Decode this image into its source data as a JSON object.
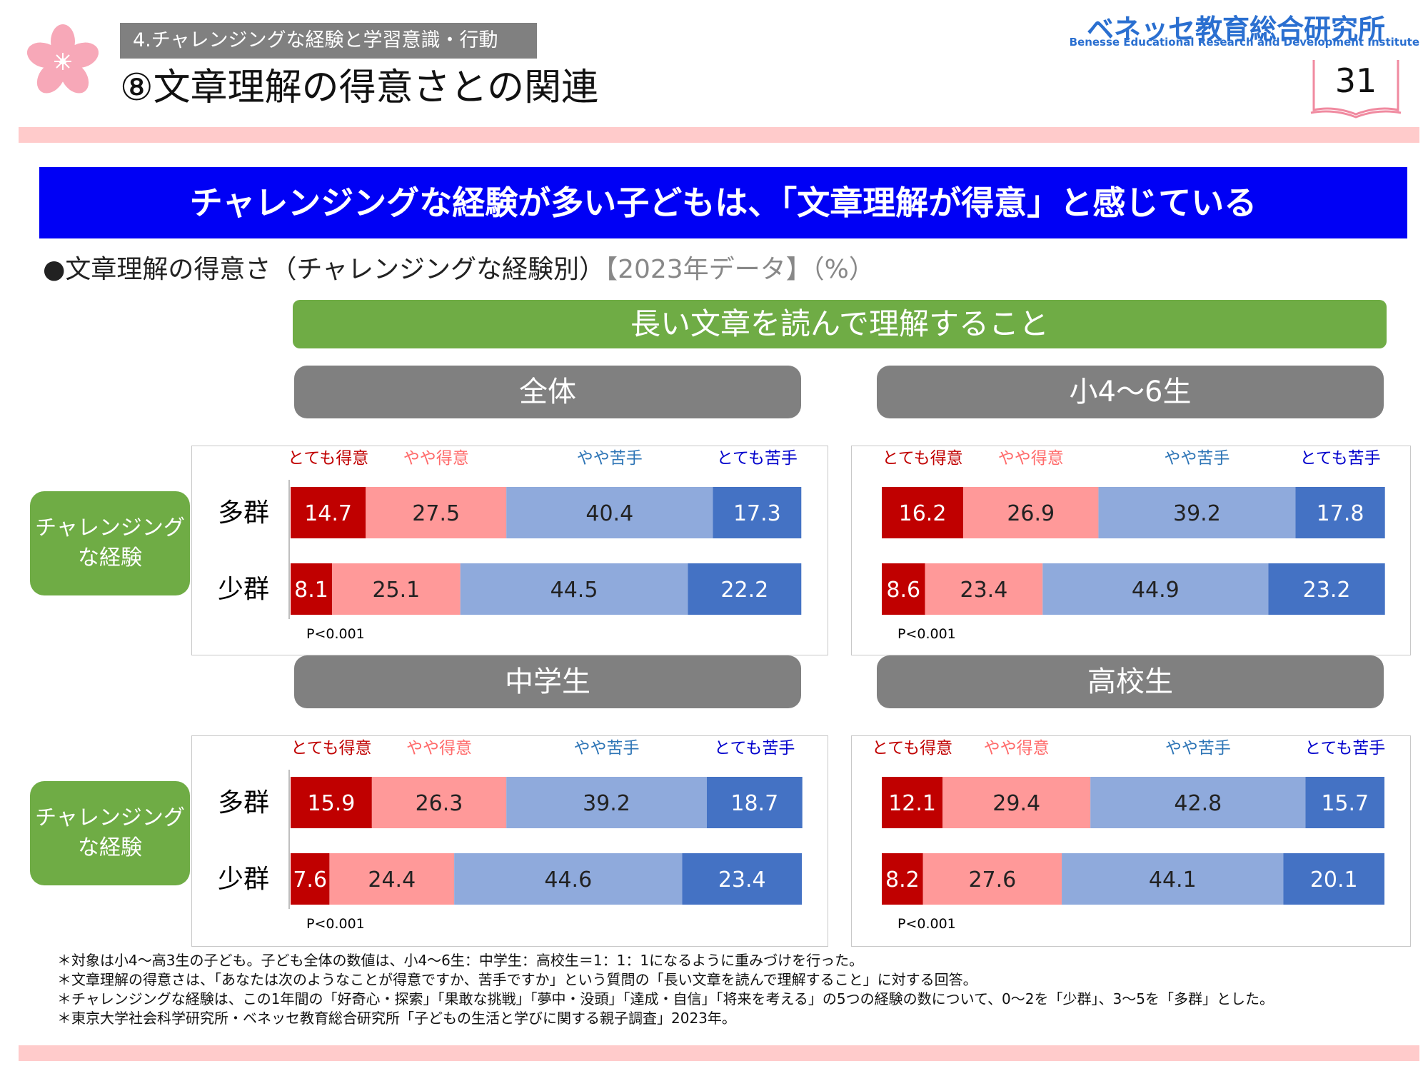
{
  "header": {
    "section_tag": "4.チャレンジングな経験と学習意識・行動",
    "title": "⑧文章理解の得意さとの関連",
    "logo_jp": "ベネッセ教育総合研究所",
    "logo_en": "Benesse Educational Research and Development Institute",
    "page_number": "31"
  },
  "banner": "チャレンジングな経験が多い子どもは、「文章理解が得意」と感じている",
  "subtitle": {
    "main": "●文章理解の得意さ（チャレンジングな経験別）",
    "suffix": "【2023年データ】（%）"
  },
  "question_bar": "長い文章を読んで理解すること",
  "category_badge": [
    "チャレンジング",
    "な経験"
  ],
  "colors": {
    "very_good": "#c00000",
    "somewhat_good": "#ff9999",
    "somewhat_bad": "#8faadc",
    "very_bad": "#4472c4",
    "legend_red": "#c00000",
    "legend_pink": "#ff6b6b",
    "legend_lightblue": "#2e75b6",
    "legend_blue": "#0000cc"
  },
  "chart_data": [
    {
      "type": "bar",
      "title": "全体",
      "stacked": true,
      "orientation": "horizontal",
      "categories": [
        "多群",
        "少群"
      ],
      "series": [
        {
          "name": "とても得意",
          "values": [
            14.7,
            8.1
          ]
        },
        {
          "name": "やや得意",
          "values": [
            27.5,
            25.1
          ]
        },
        {
          "name": "やや苦手",
          "values": [
            40.4,
            44.5
          ]
        },
        {
          "name": "とても苦手",
          "values": [
            17.3,
            22.2
          ]
        }
      ],
      "annotation": "P<0.001"
    },
    {
      "type": "bar",
      "title": "小4～6生",
      "stacked": true,
      "orientation": "horizontal",
      "categories": [
        "多群",
        "少群"
      ],
      "series": [
        {
          "name": "とても得意",
          "values": [
            16.2,
            8.6
          ]
        },
        {
          "name": "やや得意",
          "values": [
            26.9,
            23.4
          ]
        },
        {
          "name": "やや苦手",
          "values": [
            39.2,
            44.9
          ]
        },
        {
          "name": "とても苦手",
          "values": [
            17.8,
            23.2
          ]
        }
      ],
      "annotation": "P<0.001"
    },
    {
      "type": "bar",
      "title": "中学生",
      "stacked": true,
      "orientation": "horizontal",
      "categories": [
        "多群",
        "少群"
      ],
      "series": [
        {
          "name": "とても得意",
          "values": [
            15.9,
            7.6
          ]
        },
        {
          "name": "やや得意",
          "values": [
            26.3,
            24.4
          ]
        },
        {
          "name": "やや苦手",
          "values": [
            39.2,
            44.6
          ]
        },
        {
          "name": "とても苦手",
          "values": [
            18.7,
            23.4
          ]
        }
      ],
      "annotation": "P<0.001"
    },
    {
      "type": "bar",
      "title": "高校生",
      "stacked": true,
      "orientation": "horizontal",
      "categories": [
        "多群",
        "少群"
      ],
      "series": [
        {
          "name": "とても得意",
          "values": [
            12.1,
            8.2
          ]
        },
        {
          "name": "やや得意",
          "values": [
            29.4,
            27.6
          ]
        },
        {
          "name": "やや苦手",
          "values": [
            42.8,
            44.1
          ]
        },
        {
          "name": "とても苦手",
          "values": [
            15.7,
            20.1
          ]
        }
      ],
      "annotation": "P<0.001"
    }
  ],
  "notes": [
    "＊対象は小4～高3生の子ども。子ども全体の数値は、小4～6生：中学生：高校生＝1：1：1になるように重みづけを行った。",
    "＊文章理解の得意さは、「あなたは次のようなことが得意ですか、苦手ですか」という質問の「長い文章を読んで理解すること」に対する回答。",
    "＊チャレンジングな経験は、この1年間の「好奇心・探索」「果敢な挑戦」「夢中・没頭」「達成・自信」「将来を考える」の5つの経験の数について、0～2を「少群」、3～5を「多群」とした。",
    "＊東京大学社会科学研究所・ベネッセ教育総合研究所「子どもの生活と学びに関する親子調査」2023年。"
  ]
}
